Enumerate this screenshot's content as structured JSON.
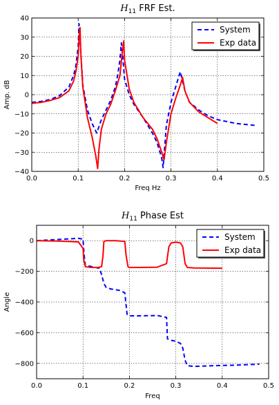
{
  "chart_data": [
    {
      "type": "line",
      "title_symbol": "H",
      "title_sub": "11",
      "title_rest": " FRF Est.",
      "xlabel": "Freq Hz",
      "ylabel": "Amp. dB",
      "xlim": [
        0,
        0.5
      ],
      "ylim": [
        -40,
        40
      ],
      "xticks": [
        "0.0",
        "0.1",
        "0.2",
        "0.3",
        "0.4",
        "0.5"
      ],
      "yticks": [
        "40",
        "30",
        "20",
        "10",
        "0",
        "−10",
        "−20",
        "−30",
        "−40"
      ],
      "grid": true,
      "legend_position": "top-right",
      "series": [
        {
          "name": "System",
          "color": "#0000ff",
          "style": "dashed",
          "x": [
            0,
            0.02,
            0.04,
            0.06,
            0.08,
            0.09,
            0.095,
            0.1,
            0.102,
            0.105,
            0.11,
            0.12,
            0.13,
            0.14,
            0.15,
            0.16,
            0.17,
            0.18,
            0.185,
            0.19,
            0.193,
            0.196,
            0.2,
            0.21,
            0.22,
            0.24,
            0.26,
            0.27,
            0.28,
            0.283,
            0.29,
            0.3,
            0.31,
            0.32,
            0.33,
            0.34,
            0.36,
            0.38,
            0.4,
            0.44,
            0.48
          ],
          "y": [
            -4,
            -3.5,
            -2.5,
            -0.5,
            4,
            10,
            15,
            25,
            37,
            25,
            5,
            -8,
            -15,
            -20,
            -13,
            -8,
            -3,
            4,
            10,
            18,
            27,
            20,
            8,
            0,
            -5,
            -12,
            -20,
            -25,
            -33,
            -38,
            -16,
            -4,
            4,
            12,
            2,
            -4,
            -8,
            -11,
            -13,
            -15,
            -16
          ]
        },
        {
          "name": "Exp data",
          "color": "#ff0000",
          "style": "solid",
          "x": [
            0,
            0.02,
            0.04,
            0.06,
            0.08,
            0.09,
            0.095,
            0.1,
            0.102,
            0.104,
            0.106,
            0.11,
            0.12,
            0.13,
            0.138,
            0.142,
            0.145,
            0.15,
            0.16,
            0.17,
            0.18,
            0.19,
            0.195,
            0.198,
            0.2,
            0.21,
            0.22,
            0.24,
            0.26,
            0.27,
            0.28,
            0.285,
            0.29,
            0.3,
            0.31,
            0.32,
            0.325,
            0.33,
            0.34,
            0.36,
            0.38,
            0.4
          ],
          "y": [
            -4.5,
            -4,
            -3,
            -1.5,
            2,
            7,
            12,
            20,
            30,
            35,
            20,
            4,
            -12,
            -22,
            -32,
            -38.5,
            -28,
            -18,
            -10,
            -5,
            2,
            10,
            22,
            28,
            18,
            3,
            -4,
            -12,
            -18,
            -23,
            -30,
            -34,
            -25,
            -10,
            -2,
            5,
            9,
            2,
            -4,
            -9,
            -12,
            -15
          ]
        }
      ]
    },
    {
      "type": "line",
      "title_symbol": "H",
      "title_sub": "11",
      "title_rest": " Phase Est",
      "xlabel": "Freq",
      "ylabel": "Angle",
      "xlim": [
        0,
        0.5
      ],
      "ylim": [
        -900,
        100
      ],
      "xticks": [
        "0.0",
        "0.1",
        "0.2",
        "0.3",
        "0.4",
        "0.5"
      ],
      "yticks": [
        "0",
        "−200",
        "−400",
        "−600",
        "−800"
      ],
      "grid": true,
      "legend_position": "top-right",
      "series": [
        {
          "name": "System",
          "color": "#0000ff",
          "style": "dashed",
          "x": [
            0,
            0.05,
            0.09,
            0.1,
            0.102,
            0.105,
            0.12,
            0.135,
            0.14,
            0.145,
            0.15,
            0.16,
            0.18,
            0.19,
            0.195,
            0.2,
            0.22,
            0.26,
            0.28,
            0.282,
            0.29,
            0.3,
            0.31,
            0.315,
            0.32,
            0.325,
            0.34,
            0.38,
            0.42,
            0.46,
            0.48
          ],
          "y": [
            0,
            8,
            15,
            10,
            -80,
            -160,
            -170,
            -180,
            -220,
            -280,
            -305,
            -315,
            -325,
            -340,
            -480,
            -490,
            -490,
            -488,
            -500,
            -640,
            -650,
            -655,
            -670,
            -700,
            -780,
            -815,
            -820,
            -815,
            -812,
            -808,
            -805
          ]
        },
        {
          "name": "Exp data",
          "color": "#ff0000",
          "style": "solid",
          "x": [
            0,
            0.05,
            0.09,
            0.1,
            0.102,
            0.105,
            0.12,
            0.13,
            0.14,
            0.143,
            0.145,
            0.15,
            0.17,
            0.19,
            0.193,
            0.197,
            0.2,
            0.22,
            0.26,
            0.28,
            0.285,
            0.29,
            0.3,
            0.31,
            0.315,
            0.32,
            0.325,
            0.34,
            0.38,
            0.4
          ],
          "y": [
            0,
            -3,
            -8,
            -50,
            -130,
            -170,
            -175,
            -175,
            -170,
            -100,
            -5,
            0,
            0,
            -5,
            -100,
            -170,
            -175,
            -175,
            -173,
            -150,
            -40,
            -15,
            -10,
            -15,
            -40,
            -150,
            -175,
            -178,
            -179,
            -180
          ]
        }
      ]
    }
  ]
}
